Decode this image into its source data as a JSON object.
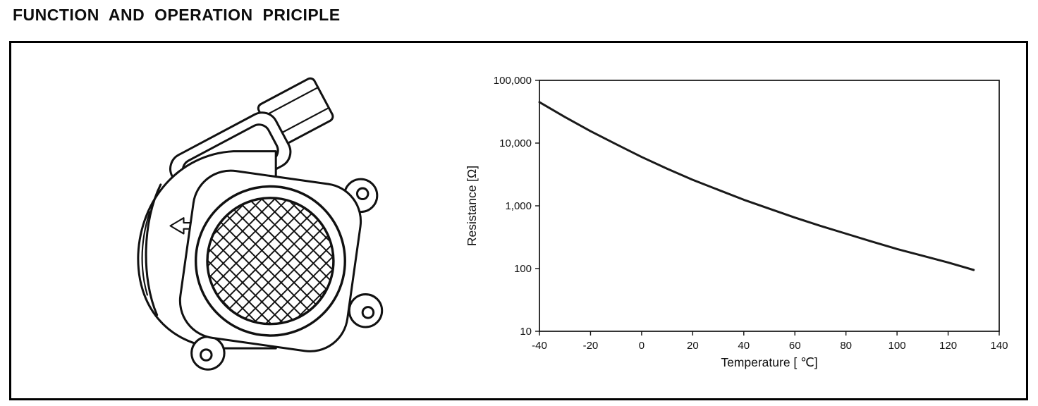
{
  "page": {
    "title": "FUNCTION AND OPERATION PRICIPLE"
  },
  "figure": {
    "illustration": "mass-air-flow-sensor-line-drawing"
  },
  "chart_data": {
    "type": "line",
    "title": "",
    "xlabel": "Temperature [ ℃]",
    "ylabel": "Resistance [Ω]",
    "x": [
      -40,
      -30,
      -20,
      -10,
      0,
      10,
      20,
      30,
      40,
      50,
      60,
      70,
      80,
      90,
      100,
      110,
      120,
      130
    ],
    "y": [
      45000,
      26000,
      15500,
      9600,
      6000,
      3900,
      2600,
      1800,
      1250,
      900,
      650,
      480,
      360,
      270,
      205,
      160,
      125,
      95
    ],
    "xlim": [
      -40,
      140
    ],
    "x_ticks": [
      -40,
      -20,
      0,
      20,
      40,
      60,
      80,
      100,
      120,
      140
    ],
    "y_scale": "log",
    "ylim": [
      10,
      100000
    ],
    "y_ticks": [
      10,
      100,
      1000,
      10000,
      100000
    ],
    "y_tick_labels": [
      "10",
      "100",
      "1,000",
      "10,000",
      "100,000"
    ],
    "grid": false,
    "legend": "none",
    "line_color": "#1a1a1a",
    "frame_color": "#111111"
  }
}
